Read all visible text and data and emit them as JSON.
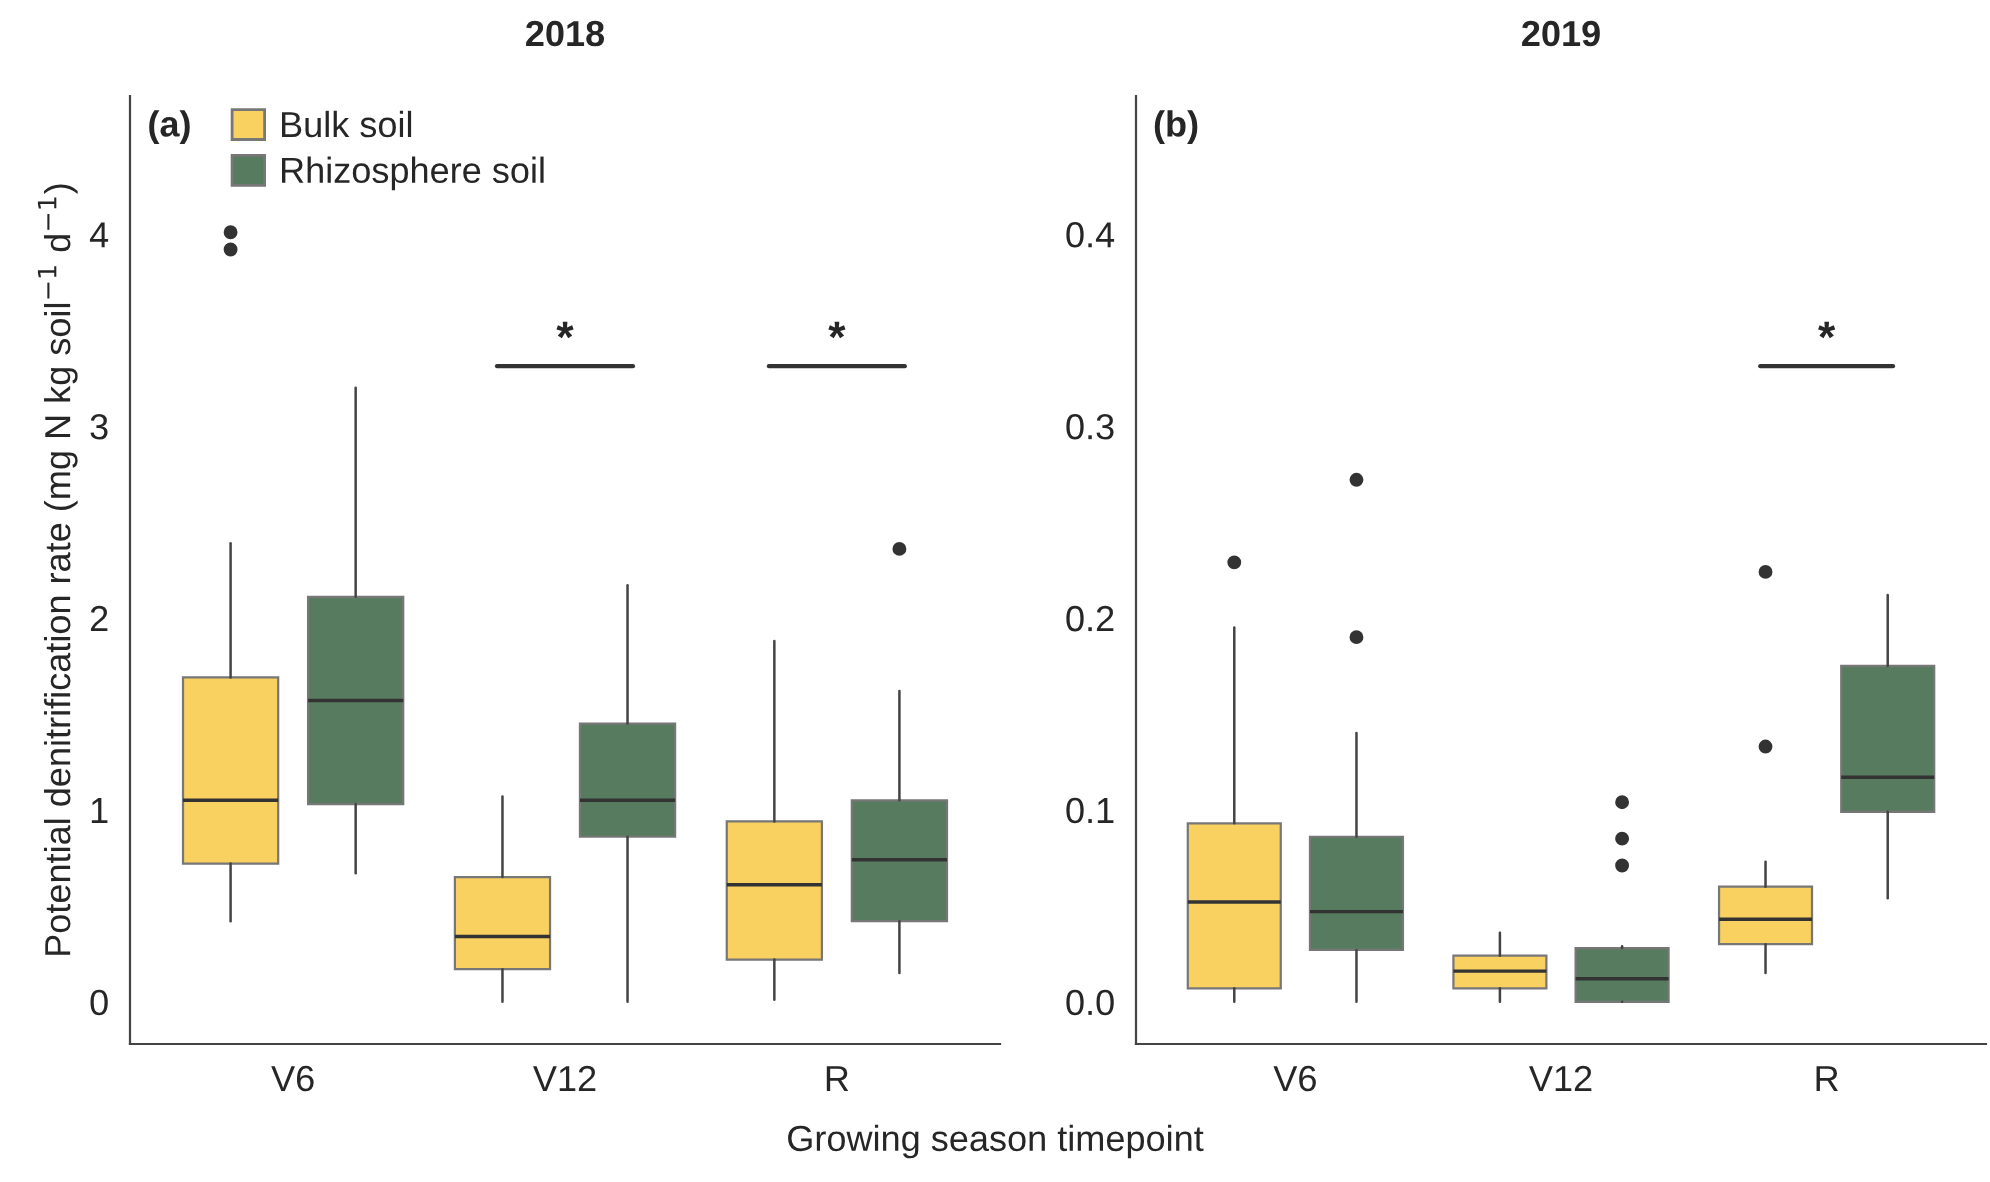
{
  "chart_data": [
    {
      "type": "box",
      "title": "2018",
      "xlabel": "Growing season timepoint",
      "ylabel": "Potential denitrification rate (mg N kg soil$^{−1}$ d$^{−1}$)",
      "categories": [
        "V6",
        "V12",
        "R"
      ],
      "ylim": [
        -0.22,
        4.72
      ],
      "yticks": [
        0,
        1,
        2,
        3,
        4
      ],
      "legend": "top left",
      "grid": false,
      "series": [
        {
          "name": "Bulk soil",
          "color": "#f9d160",
          "boxes": [
            {
              "low": 0.42,
              "q1": 0.72,
              "median": 1.05,
              "q3": 1.69,
              "high": 2.39,
              "outliers": [
                4.01,
                3.92
              ]
            },
            {
              "low": 0,
              "q1": 0.17,
              "median": 0.34,
              "q3": 0.65,
              "high": 1.07
            },
            {
              "low": 0.01,
              "q1": 0.22,
              "median": 0.61,
              "q3": 0.94,
              "high": 1.88
            }
          ]
        },
        {
          "name": "Rhizosphere soil",
          "color": "#577b5f",
          "boxes": [
            {
              "low": 0.67,
              "q1": 1.03,
              "median": 1.57,
              "q3": 2.11,
              "high": 3.2
            },
            {
              "low": 0,
              "q1": 0.86,
              "median": 1.05,
              "q3": 1.45,
              "high": 2.17
            },
            {
              "low": 0.15,
              "q1": 0.42,
              "median": 0.74,
              "q3": 1.05,
              "high": 1.62,
              "outliers": [
                2.36
              ]
            }
          ]
        }
      ],
      "annotations": [
        "(a)",
        "*",
        "*"
      ]
    },
    {
      "type": "box",
      "title": "2019",
      "categories": [
        "V6",
        "V12",
        "R"
      ],
      "ylim": [
        -0.022,
        0.472
      ],
      "yticks": [
        {
          "value": 0,
          "label": "0.0"
        },
        {
          "value": 0.1,
          "label": "0.1"
        },
        {
          "value": 0.2,
          "label": "0.2"
        },
        {
          "value": 0.3,
          "label": "0.3"
        },
        {
          "value": 0.4,
          "label": "0.4"
        }
      ],
      "grid": false,
      "series": [
        {
          "color": "#f9d160",
          "boxes": [
            {
              "low": 0,
              "q1": 0.007,
              "median": 0.052,
              "q3": 0.093,
              "high": 0.195,
              "outliers": [
                0.229
              ]
            },
            {
              "low": 0,
              "q1": 0.007,
              "median": 0.016,
              "q3": 0.024,
              "high": 0.036
            },
            {
              "low": 0.015,
              "q1": 0.03,
              "median": 0.043,
              "q3": 0.06,
              "high": 0.073,
              "outliers": [
                0.224,
                0.133
              ]
            }
          ]
        },
        {
          "color": "#577b5f",
          "boxes": [
            {
              "low": 0,
              "q1": 0.027,
              "median": 0.047,
              "q3": 0.086,
              "high": 0.14,
              "outliers": [
                0.272,
                0.19
              ]
            },
            {
              "low": 0,
              "q1": 0,
              "median": 0.012,
              "q3": 0.028,
              "high": 0.029,
              "outliers": [
                0.104,
                0.085,
                0.071
              ]
            },
            {
              "low": 0.054,
              "q1": 0.099,
              "median": 0.117,
              "q3": 0.175,
              "high": 0.212
            }
          ]
        }
      ],
      "annotations": [
        "(b)",
        "*"
      ]
    }
  ]
}
